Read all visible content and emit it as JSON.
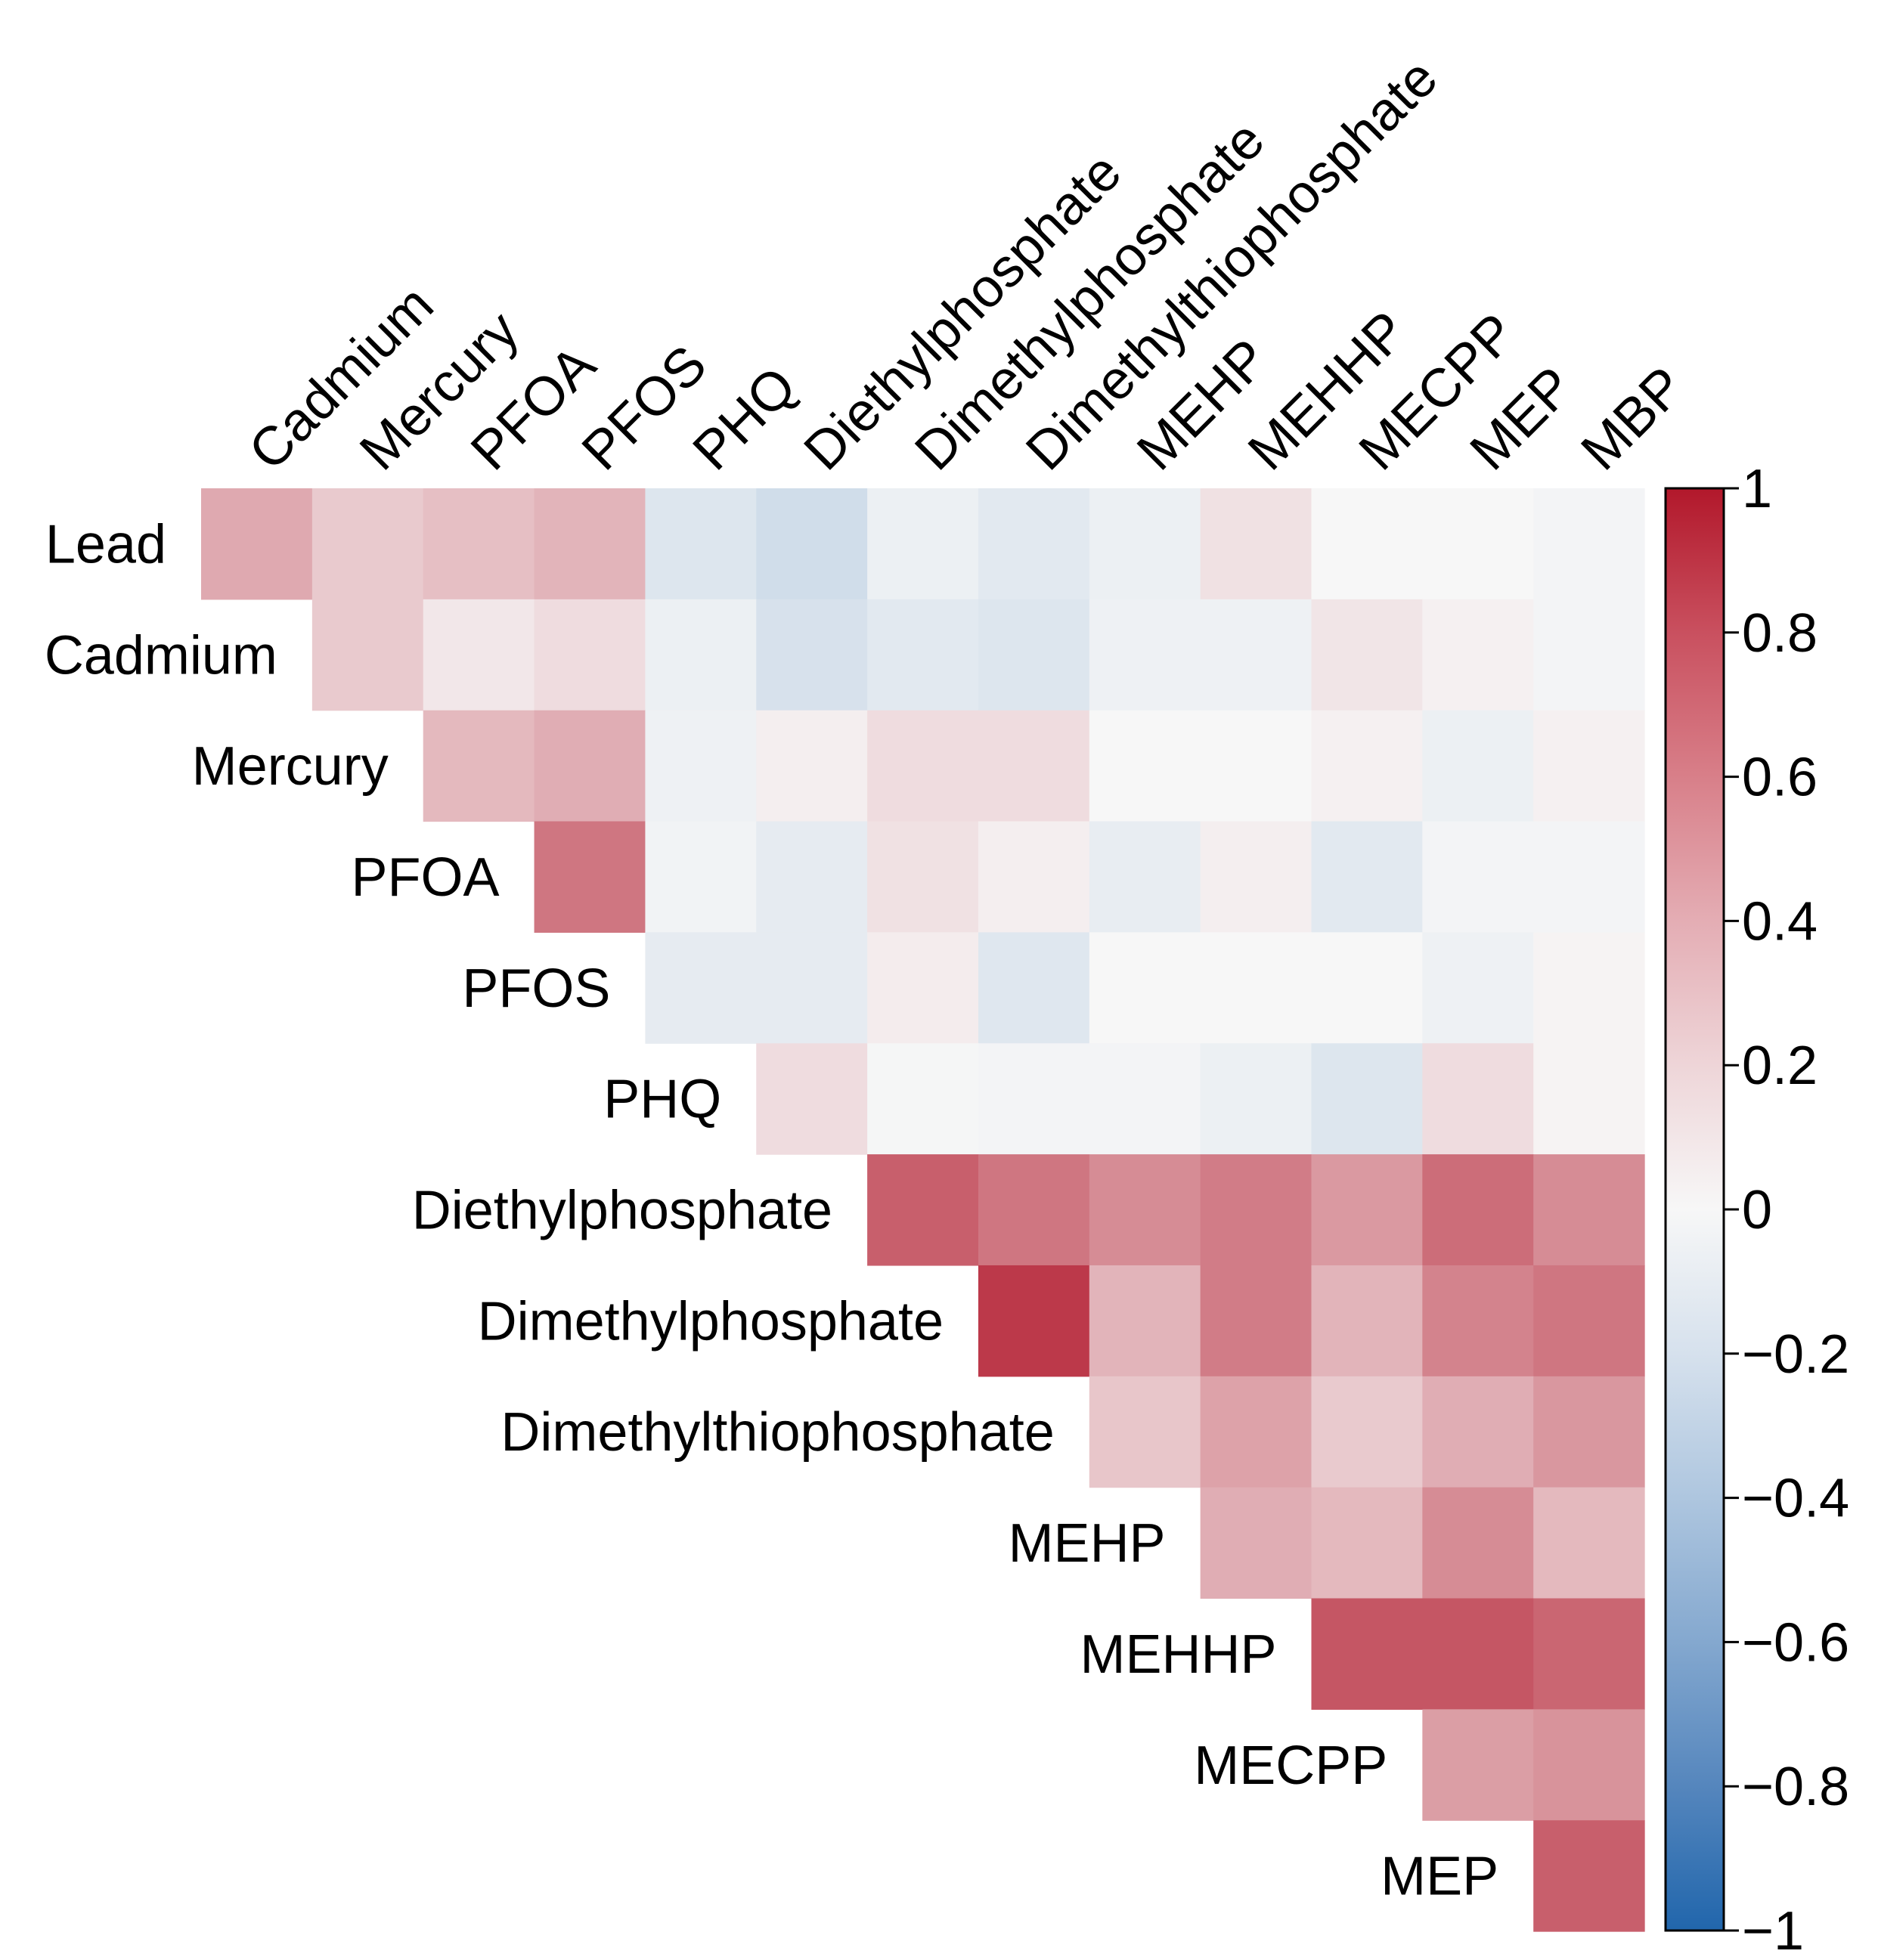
{
  "chart_data": {
    "type": "heatmap",
    "title": "",
    "subtype": "correlation-upper-triangle",
    "row_labels": [
      "Lead",
      "Cadmium",
      "Mercury",
      "PFOA",
      "PFOS",
      "PHQ",
      "Diethylphosphate",
      "Dimethylphosphate",
      "Dimethylthiophosphate",
      "MEHP",
      "MEHHP",
      "MECPP",
      "MEP"
    ],
    "column_labels": [
      "Cadmium",
      "Mercury",
      "PFOA",
      "PFOS",
      "PHQ",
      "Diethylphosphate",
      "Dimethylphosphate",
      "Dimethylthiophosphate",
      "MEHP",
      "MEHHP",
      "MECPP",
      "MEP",
      "MBP"
    ],
    "values": [
      [
        0.35,
        0.2,
        0.25,
        0.3,
        -0.12,
        -0.18,
        -0.05,
        -0.1,
        -0.05,
        0.1,
        0.0,
        0.0,
        -0.02
      ],
      [
        null,
        0.2,
        0.07,
        0.12,
        -0.05,
        -0.15,
        -0.1,
        -0.12,
        -0.04,
        -0.04,
        0.08,
        0.03,
        -0.02
      ],
      [
        null,
        null,
        0.28,
        0.33,
        -0.04,
        0.04,
        0.12,
        0.12,
        0.0,
        0.0,
        0.03,
        -0.05,
        0.03
      ],
      [
        null,
        null,
        null,
        0.58,
        -0.03,
        -0.08,
        0.1,
        0.04,
        -0.07,
        0.04,
        -0.1,
        -0.02,
        -0.02
      ],
      [
        null,
        null,
        null,
        null,
        -0.08,
        -0.08,
        0.05,
        -0.11,
        0.0,
        0.0,
        0.0,
        -0.04,
        0.02
      ],
      [
        null,
        null,
        null,
        null,
        null,
        0.12,
        -0.01,
        -0.02,
        -0.02,
        -0.05,
        -0.12,
        0.12,
        0.02
      ],
      [
        null,
        null,
        null,
        null,
        null,
        null,
        0.68,
        0.58,
        0.48,
        0.55,
        0.42,
        0.62,
        0.48
      ],
      [
        null,
        null,
        null,
        null,
        null,
        null,
        null,
        0.85,
        0.3,
        0.55,
        0.3,
        0.52,
        0.58
      ],
      [
        null,
        null,
        null,
        null,
        null,
        null,
        null,
        null,
        0.22,
        0.38,
        0.2,
        0.33,
        0.43
      ],
      [
        null,
        null,
        null,
        null,
        null,
        null,
        null,
        null,
        null,
        0.33,
        0.28,
        0.48,
        0.28
      ],
      [
        null,
        null,
        null,
        null,
        null,
        null,
        null,
        null,
        null,
        null,
        0.72,
        0.72,
        0.65
      ],
      [
        null,
        null,
        null,
        null,
        null,
        null,
        null,
        null,
        null,
        null,
        null,
        0.4,
        0.45
      ],
      [
        null,
        null,
        null,
        null,
        null,
        null,
        null,
        null,
        null,
        null,
        null,
        null,
        0.68
      ]
    ],
    "colorbar": {
      "range": [
        -1,
        1
      ],
      "ticks": [
        1,
        0.8,
        0.6,
        0.4,
        0.2,
        0,
        -0.2,
        -0.4,
        -0.6,
        -0.8,
        -1
      ],
      "tick_labels": [
        "1",
        "0.8",
        "0.6",
        "0.4",
        "0.2",
        "0",
        "−0.2",
        "−0.4",
        "−0.6",
        "−0.8",
        "−1"
      ],
      "color_low": "#2166ac",
      "color_mid": "#f7f7f7",
      "color_high": "#b2182b"
    },
    "legend_position": "right"
  }
}
